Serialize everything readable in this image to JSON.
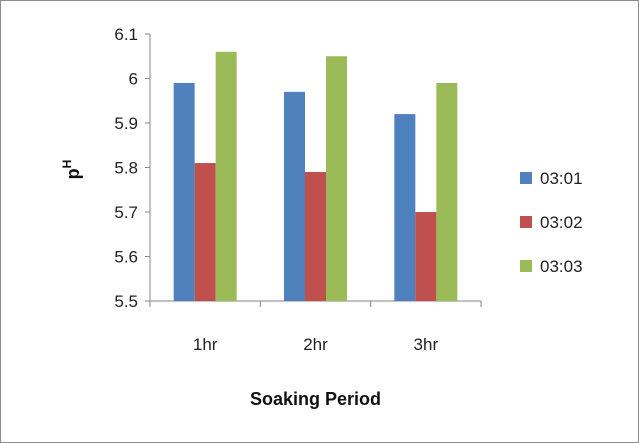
{
  "chart_data": {
    "type": "bar",
    "categories": [
      "1hr",
      "2hr",
      "3hr"
    ],
    "series": [
      {
        "name": "03:01",
        "values": [
          5.99,
          5.97,
          5.92
        ],
        "color": "#4f81bd"
      },
      {
        "name": "03:02",
        "values": [
          5.81,
          5.79,
          5.7
        ],
        "color": "#c0504d"
      },
      {
        "name": "03:03",
        "values": [
          6.06,
          6.05,
          5.99
        ],
        "color": "#9bbb59"
      }
    ],
    "xlabel": "Soaking Period",
    "ylabel": {
      "base": "p",
      "superscript": "H"
    },
    "ylim": [
      5.5,
      6.1
    ],
    "yticks": [
      "5.5",
      "5.6",
      "5.7",
      "5.8",
      "5.9",
      "6",
      "6.1"
    ],
    "grid": false,
    "legend_position": "right"
  }
}
